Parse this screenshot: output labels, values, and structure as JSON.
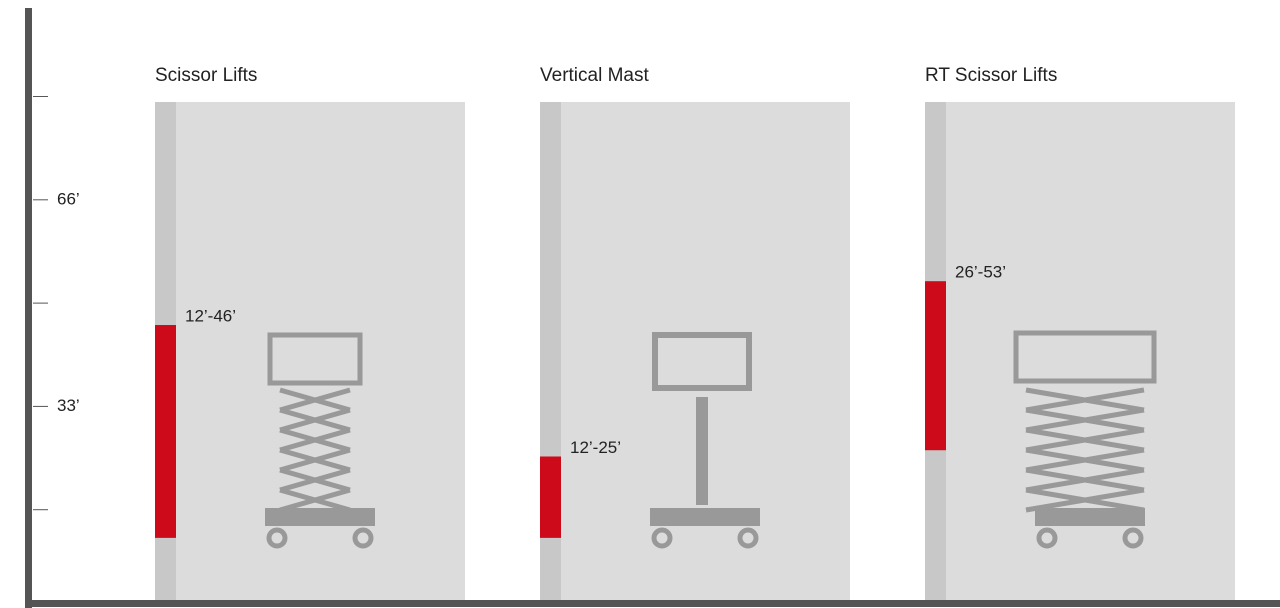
{
  "chart_data": {
    "type": "range",
    "categories": [
      "Scissor Lifts",
      "Vertical Mast",
      "RT Scissor Lifts"
    ],
    "series": [
      {
        "color": "#cc0a1a",
        "low": [
          12,
          12,
          26
        ],
        "high": [
          46,
          25,
          53
        ],
        "value_labels": [
          "12’-46’",
          "12’-25’",
          "26’-53’"
        ]
      }
    ],
    "ylim": [
      0,
      96
    ],
    "yticks": [
      {
        "value": 16.5,
        "label": null
      },
      {
        "value": 33,
        "label": "33’"
      },
      {
        "value": 49.5,
        "label": null
      },
      {
        "value": 66,
        "label": "66’"
      },
      {
        "value": 82.5,
        "label": null
      }
    ]
  }
}
